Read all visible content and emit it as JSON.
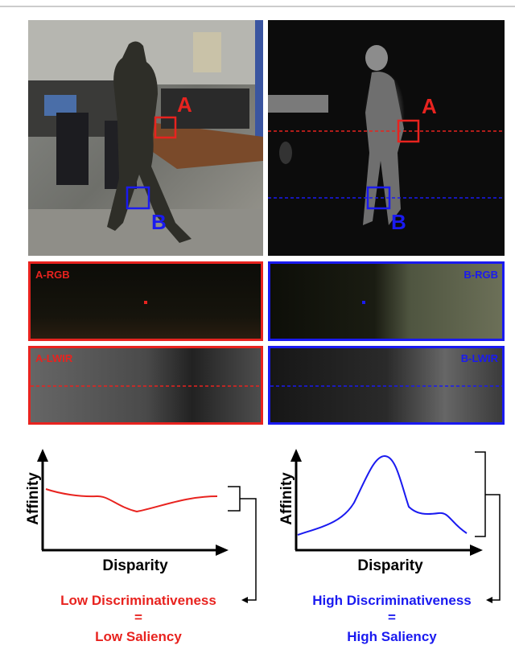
{
  "images": {
    "rgb": {
      "labels": [
        "A",
        "B"
      ]
    },
    "lwir": {
      "labels": [
        "A",
        "B"
      ]
    }
  },
  "patches": {
    "a_rgb": "A-RGB",
    "b_rgb": "B-RGB",
    "a_lwir": "A-LWIR",
    "b_lwir": "B-LWIR"
  },
  "plots": [
    {
      "y_label": "Affinity",
      "x_label": "Disparity",
      "caption": [
        "Low Discriminativeness",
        "=",
        "Low Saliency"
      ]
    },
    {
      "y_label": "Affinity",
      "x_label": "Disparity",
      "caption": [
        "High Discriminativeness",
        "=",
        "High Saliency"
      ]
    }
  ]
}
